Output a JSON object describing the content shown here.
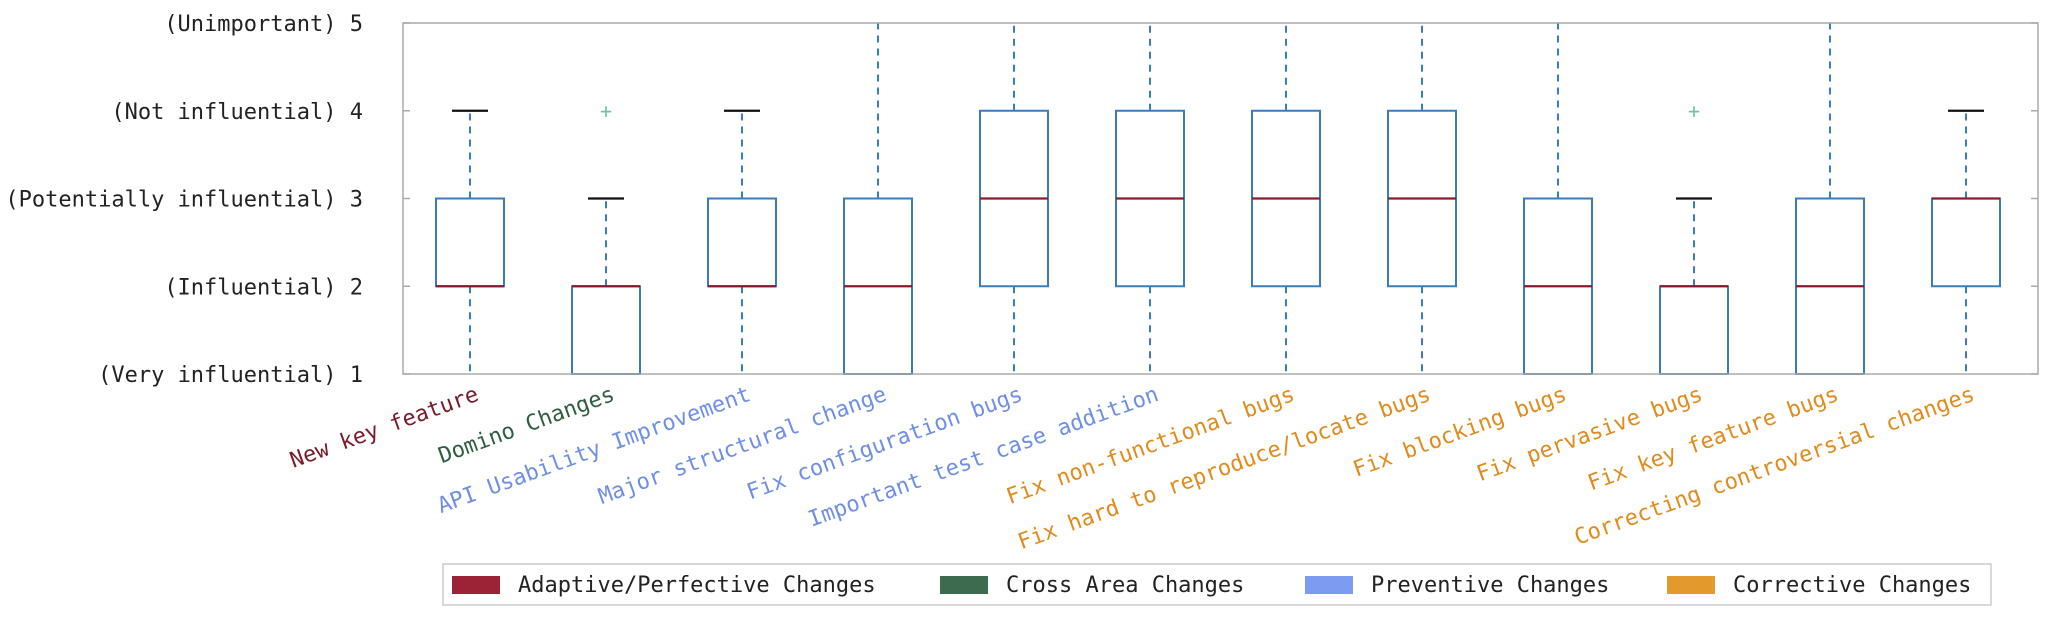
{
  "chart_data": {
    "type": "box",
    "y_ticks": [
      {
        "value": 1,
        "label": "(Very influential) 1"
      },
      {
        "value": 2,
        "label": "(Influential) 2"
      },
      {
        "value": 3,
        "label": "(Potentially influential) 3"
      },
      {
        "value": 4,
        "label": "(Not influential) 4"
      },
      {
        "value": 5,
        "label": "(Unimportant) 5"
      }
    ],
    "ylim": [
      1,
      5
    ],
    "grid": false,
    "legend_position": "bottom-right",
    "groups": [
      {
        "name": "Adaptive/Perfective Changes",
        "color": "#9b2335"
      },
      {
        "name": "Cross Area Changes",
        "color": "#3d6b4f"
      },
      {
        "name": "Preventive Changes",
        "color": "#7b9cf0"
      },
      {
        "name": "Corrective Changes",
        "color": "#e39a2a"
      }
    ],
    "label_colors": {
      "Adaptive/Perfective Changes": "#7b1a2a",
      "Cross Area Changes": "#2e5e3f",
      "Preventive Changes": "#6e8fe6",
      "Corrective Changes": "#e08b1c"
    },
    "box_color": "#3a7dbf",
    "median_color": "#8b1a2a",
    "outlier_color": "#6fc0b0",
    "categories": [
      {
        "label": "New key feature",
        "group": "Adaptive/Perfective Changes",
        "whislo": 1,
        "q1": 2,
        "median": 2,
        "q3": 3,
        "whishi": 4,
        "fliers": []
      },
      {
        "label": "Domino Changes",
        "group": "Cross Area Changes",
        "whislo": 1,
        "q1": 1,
        "median": 2,
        "q3": 2,
        "whishi": 3,
        "fliers": [
          4
        ]
      },
      {
        "label": "API Usability Improvement",
        "group": "Preventive Changes",
        "whislo": 1,
        "q1": 2,
        "median": 2,
        "q3": 3,
        "whishi": 4,
        "fliers": []
      },
      {
        "label": "Major structural change",
        "group": "Preventive Changes",
        "whislo": 1,
        "q1": 1,
        "median": 2,
        "q3": 3,
        "whishi": 5,
        "fliers": []
      },
      {
        "label": "Fix configuration bugs",
        "group": "Preventive Changes",
        "whislo": 1,
        "q1": 2,
        "median": 3,
        "q3": 4,
        "whishi": 5,
        "fliers": []
      },
      {
        "label": "Important test case addition",
        "group": "Preventive Changes",
        "whislo": 1,
        "q1": 2,
        "median": 3,
        "q3": 4,
        "whishi": 5,
        "fliers": []
      },
      {
        "label": "Fix non-functional bugs",
        "group": "Corrective Changes",
        "whislo": 1,
        "q1": 2,
        "median": 3,
        "q3": 4,
        "whishi": 5,
        "fliers": []
      },
      {
        "label": "Fix hard to reproduce/locate bugs",
        "group": "Corrective Changes",
        "whislo": 1,
        "q1": 2,
        "median": 3,
        "q3": 4,
        "whishi": 5,
        "fliers": []
      },
      {
        "label": "Fix blocking bugs",
        "group": "Corrective Changes",
        "whislo": 1,
        "q1": 1,
        "median": 2,
        "q3": 3,
        "whishi": 5,
        "fliers": []
      },
      {
        "label": "Fix pervasive bugs",
        "group": "Corrective Changes",
        "whislo": 1,
        "q1": 1,
        "median": 2,
        "q3": 2,
        "whishi": 3,
        "fliers": [
          4
        ]
      },
      {
        "label": "Fix key feature bugs",
        "group": "Corrective Changes",
        "whislo": 1,
        "q1": 1,
        "median": 2,
        "q3": 3,
        "whishi": 5,
        "fliers": []
      },
      {
        "label": "Correcting controversial changes",
        "group": "Corrective Changes",
        "whislo": 1,
        "q1": 2,
        "median": 3,
        "q3": 3,
        "whishi": 4,
        "fliers": []
      }
    ]
  }
}
